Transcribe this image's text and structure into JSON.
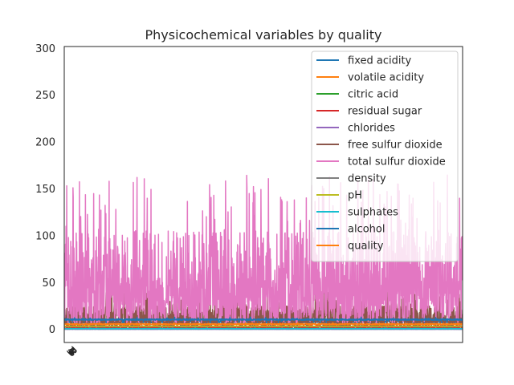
{
  "chart_data": {
    "type": "line",
    "title": "Physicochemical variables by quality",
    "xlabel": "",
    "ylabel": "",
    "ylim": [
      -14,
      302
    ],
    "yticks": [
      0,
      50,
      100,
      150,
      200,
      250,
      300
    ],
    "grid": false,
    "legend_position": "upper right",
    "x_tick_labels_overlapping": [
      "3",
      "4",
      "5",
      "6",
      "7",
      "8"
    ],
    "n_samples": 1599,
    "series": [
      {
        "name": "fixed acidity",
        "color": "#1f77b4",
        "baseline": 8.3,
        "range": [
          4.6,
          15.9
        ]
      },
      {
        "name": "volatile acidity",
        "color": "#ff7f0e",
        "baseline": 0.53,
        "range": [
          0.12,
          1.58
        ]
      },
      {
        "name": "citric acid",
        "color": "#2ca02c",
        "baseline": 0.27,
        "range": [
          0.0,
          1.0
        ]
      },
      {
        "name": "residual sugar",
        "color": "#d62728",
        "baseline": 2.5,
        "range": [
          0.9,
          15.5
        ]
      },
      {
        "name": "chlorides",
        "color": "#9467bd",
        "baseline": 0.087,
        "range": [
          0.012,
          0.611
        ]
      },
      {
        "name": "free sulfur dioxide",
        "color": "#8c564b",
        "baseline": 15.9,
        "range": [
          1,
          72
        ]
      },
      {
        "name": "total sulfur dioxide",
        "color": "#e377c2",
        "baseline": 46,
        "range": [
          6,
          165
        ]
      },
      {
        "name": "density",
        "color": "#7f7f7f",
        "baseline": 0.997,
        "range": [
          0.99,
          1.004
        ]
      },
      {
        "name": "pH",
        "color": "#bcbd22",
        "baseline": 3.31,
        "range": [
          2.74,
          4.01
        ]
      },
      {
        "name": "sulphates",
        "color": "#17becf",
        "baseline": 0.66,
        "range": [
          0.33,
          2.0
        ]
      },
      {
        "name": "alcohol",
        "color": "#1f77b4",
        "baseline": 10.4,
        "range": [
          8.4,
          14.9
        ]
      },
      {
        "name": "quality",
        "color": "#ff7f0e",
        "baseline": 5.6,
        "range": [
          3,
          8
        ]
      }
    ]
  }
}
